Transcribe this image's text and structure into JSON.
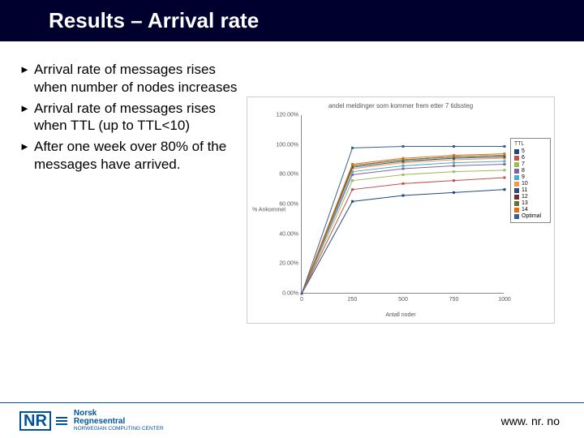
{
  "title": "Results – Arrival rate",
  "bullets": [
    "Arrival rate of messages rises when number of nodes increases",
    "Arrival rate of messages rises when TTL (up to TTL<10)",
    "After one week over 80% of the messages have arrived."
  ],
  "chart": {
    "type": "line",
    "title": "andel meldinger som kommer frem etter 7 tidssteg",
    "ylabel": "% Ankommet",
    "xlabel": "Antall noder",
    "background_color": "#ffffff",
    "border_color": "#888888",
    "x": [
      0,
      250,
      500,
      750,
      1000
    ],
    "xlim": [
      0,
      1000
    ],
    "yticks": [
      "0.00%",
      "20.00%",
      "40.00%",
      "60.00%",
      "80.00%",
      "100.00%",
      "120.00%"
    ],
    "ylim": [
      0,
      120
    ],
    "label_fontsize": 7,
    "title_fontsize": 8,
    "line_width": 1,
    "marker_size": 3,
    "marker_shape": "square",
    "legend_title": "TTL",
    "series": [
      {
        "label": "5",
        "color": "#1f497d",
        "y": [
          0,
          62,
          66,
          68,
          70
        ]
      },
      {
        "label": "6",
        "color": "#c0504d",
        "y": [
          0,
          70,
          74,
          76,
          78
        ]
      },
      {
        "label": "7",
        "color": "#9bbb59",
        "y": [
          0,
          76,
          80,
          82,
          83
        ]
      },
      {
        "label": "8",
        "color": "#8064a2",
        "y": [
          0,
          80,
          84,
          86,
          87
        ]
      },
      {
        "label": "9",
        "color": "#4bacc6",
        "y": [
          0,
          82,
          86,
          88,
          89
        ]
      },
      {
        "label": "10",
        "color": "#f79646",
        "y": [
          0,
          84,
          88,
          90,
          91
        ]
      },
      {
        "label": "11",
        "color": "#2c4d75",
        "y": [
          0,
          85,
          89,
          91,
          92
        ]
      },
      {
        "label": "12",
        "color": "#772c2a",
        "y": [
          0,
          86,
          90,
          92,
          93
        ]
      },
      {
        "label": "13",
        "color": "#5f7530",
        "y": [
          0,
          86,
          90,
          92,
          93
        ]
      },
      {
        "label": "14",
        "color": "#e46c0a",
        "y": [
          0,
          87,
          91,
          93,
          94
        ]
      },
      {
        "label": "Optimal",
        "color": "#376092",
        "y": [
          0,
          98,
          99,
          99,
          99
        ]
      }
    ]
  },
  "footer": {
    "logo_mark": "NR",
    "logo_top": "Norsk",
    "logo_mid": "Regnesentral",
    "logo_bot": "NORWEGIAN COMPUTING CENTER",
    "url": "www. nr. no"
  },
  "colors": {
    "title_bg": "#00002e",
    "title_fg": "#ffffff",
    "accent": "#00529b"
  }
}
